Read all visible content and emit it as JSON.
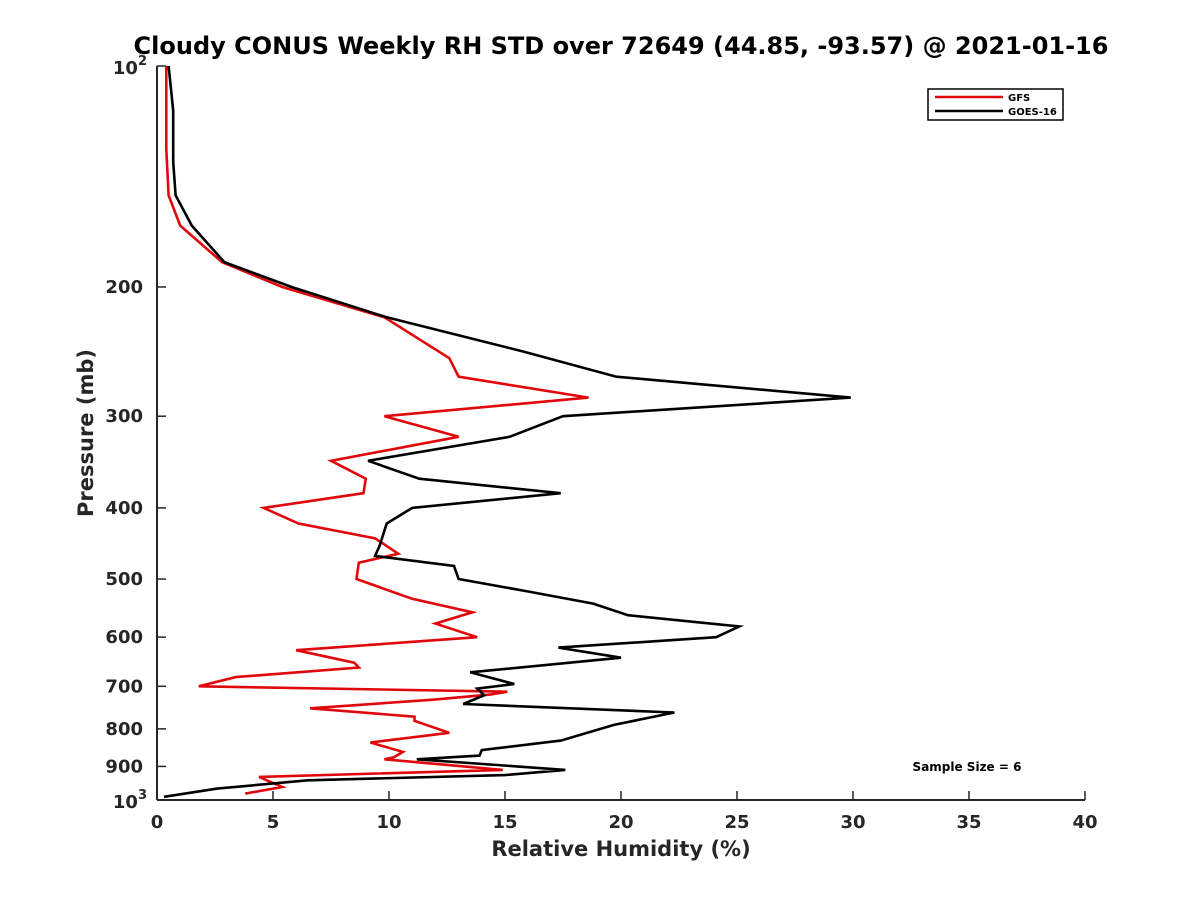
{
  "chart_data": {
    "type": "line",
    "title": "Cloudy CONUS Weekly RH STD over 72649 (44.85, -93.57) @ 2021-01-16",
    "xlabel": "Relative Humidity (%)",
    "ylabel": "Pressure (mb)",
    "xlim": [
      0,
      40
    ],
    "ylim": [
      100,
      1000
    ],
    "y_scale": "log",
    "y_reversed": true,
    "x_ticks": [
      0,
      5,
      10,
      15,
      20,
      25,
      30,
      35,
      40
    ],
    "y_ticks": [
      {
        "value": 100,
        "base": "10",
        "exp": "2"
      },
      {
        "value": 200,
        "label": "200"
      },
      {
        "value": 300,
        "label": "300"
      },
      {
        "value": 400,
        "label": "400"
      },
      {
        "value": 500,
        "label": "500"
      },
      {
        "value": 600,
        "label": "600"
      },
      {
        "value": 700,
        "label": "700"
      },
      {
        "value": 800,
        "label": "800"
      },
      {
        "value": 900,
        "label": "900"
      },
      {
        "value": 1000,
        "base": "10",
        "exp": "3"
      }
    ],
    "grid": false,
    "legend_position": "top-right",
    "annotation": "Sample Size = 6",
    "series": [
      {
        "name": "GFS",
        "color": "#e0080b",
        "points": [
          [
            0.4,
            100
          ],
          [
            0.4,
            115
          ],
          [
            0.4,
            130
          ],
          [
            0.5,
            150
          ],
          [
            1.0,
            165
          ],
          [
            2.8,
            185
          ],
          [
            5.4,
            200
          ],
          [
            9.8,
            220
          ],
          [
            12.6,
            250
          ],
          [
            13.0,
            265
          ],
          [
            18.6,
            283
          ],
          [
            9.8,
            300
          ],
          [
            13.0,
            320
          ],
          [
            7.5,
            345
          ],
          [
            9.0,
            365
          ],
          [
            8.9,
            382
          ],
          [
            4.6,
            400
          ],
          [
            6.1,
            420
          ],
          [
            9.4,
            440
          ],
          [
            10.4,
            462
          ],
          [
            8.7,
            475
          ],
          [
            8.6,
            500
          ],
          [
            11.0,
            532
          ],
          [
            13.6,
            555
          ],
          [
            12.0,
            575
          ],
          [
            13.8,
            600
          ],
          [
            6.0,
            625
          ],
          [
            8.5,
            650
          ],
          [
            8.7,
            660
          ],
          [
            3.4,
            680
          ],
          [
            1.8,
            700
          ],
          [
            15.1,
            712
          ],
          [
            14.4,
            718
          ],
          [
            11.9,
            730
          ],
          [
            6.6,
            750
          ],
          [
            11.1,
            770
          ],
          [
            11.1,
            780
          ],
          [
            12.6,
            810
          ],
          [
            9.2,
            835
          ],
          [
            10.6,
            860
          ],
          [
            10.2,
            875
          ],
          [
            9.8,
            880
          ],
          [
            14.9,
            910
          ],
          [
            4.4,
            930
          ],
          [
            5.4,
            960
          ],
          [
            3.8,
            980
          ]
        ]
      },
      {
        "name": "GOES-16",
        "color": "#000000",
        "points": [
          [
            0.5,
            100
          ],
          [
            0.7,
            115
          ],
          [
            0.7,
            135
          ],
          [
            0.8,
            150
          ],
          [
            1.5,
            165
          ],
          [
            2.9,
            185
          ],
          [
            5.8,
            200
          ],
          [
            9.9,
            220
          ],
          [
            15.8,
            245
          ],
          [
            19.8,
            265
          ],
          [
            29.9,
            283
          ],
          [
            17.5,
            300
          ],
          [
            15.2,
            320
          ],
          [
            9.1,
            345
          ],
          [
            11.3,
            365
          ],
          [
            17.4,
            382
          ],
          [
            11.0,
            400
          ],
          [
            9.9,
            420
          ],
          [
            9.6,
            450
          ],
          [
            9.4,
            465
          ],
          [
            12.8,
            480
          ],
          [
            13.0,
            500
          ],
          [
            16.0,
            520
          ],
          [
            18.8,
            540
          ],
          [
            20.3,
            560
          ],
          [
            25.1,
            580
          ],
          [
            24.1,
            600
          ],
          [
            17.3,
            620
          ],
          [
            20.0,
            640
          ],
          [
            13.5,
            670
          ],
          [
            15.4,
            695
          ],
          [
            13.8,
            705
          ],
          [
            14.1,
            720
          ],
          [
            13.2,
            740
          ],
          [
            22.3,
            760
          ],
          [
            19.7,
            790
          ],
          [
            17.4,
            830
          ],
          [
            14.0,
            855
          ],
          [
            13.9,
            870
          ],
          [
            11.2,
            880
          ],
          [
            17.6,
            910
          ],
          [
            15.0,
            925
          ],
          [
            6.5,
            940
          ],
          [
            2.6,
            965
          ],
          [
            0.3,
            990
          ]
        ]
      }
    ]
  }
}
